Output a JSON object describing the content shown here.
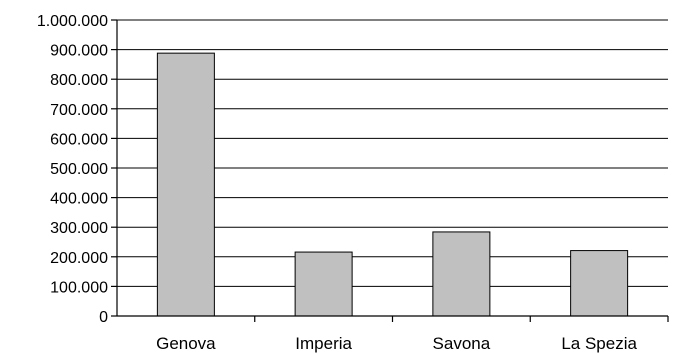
{
  "chart_data": {
    "type": "bar",
    "categories": [
      "Genova",
      "Imperia",
      "Savona",
      "La Spezia"
    ],
    "values": [
      888000,
      216000,
      284000,
      221000
    ],
    "ylim": [
      0,
      1000000
    ],
    "ytick_step": 100000,
    "ytick_labels": [
      "0",
      "100.000",
      "200.000",
      "300.000",
      "400.000",
      "500.000",
      "600.000",
      "700.000",
      "800.000",
      "900.000",
      "1.000.000"
    ],
    "grid": true,
    "legend": "none",
    "colors": {
      "bar_fill": "#c0c0c0",
      "bar_stroke": "#000000",
      "grid": "#000000"
    }
  }
}
